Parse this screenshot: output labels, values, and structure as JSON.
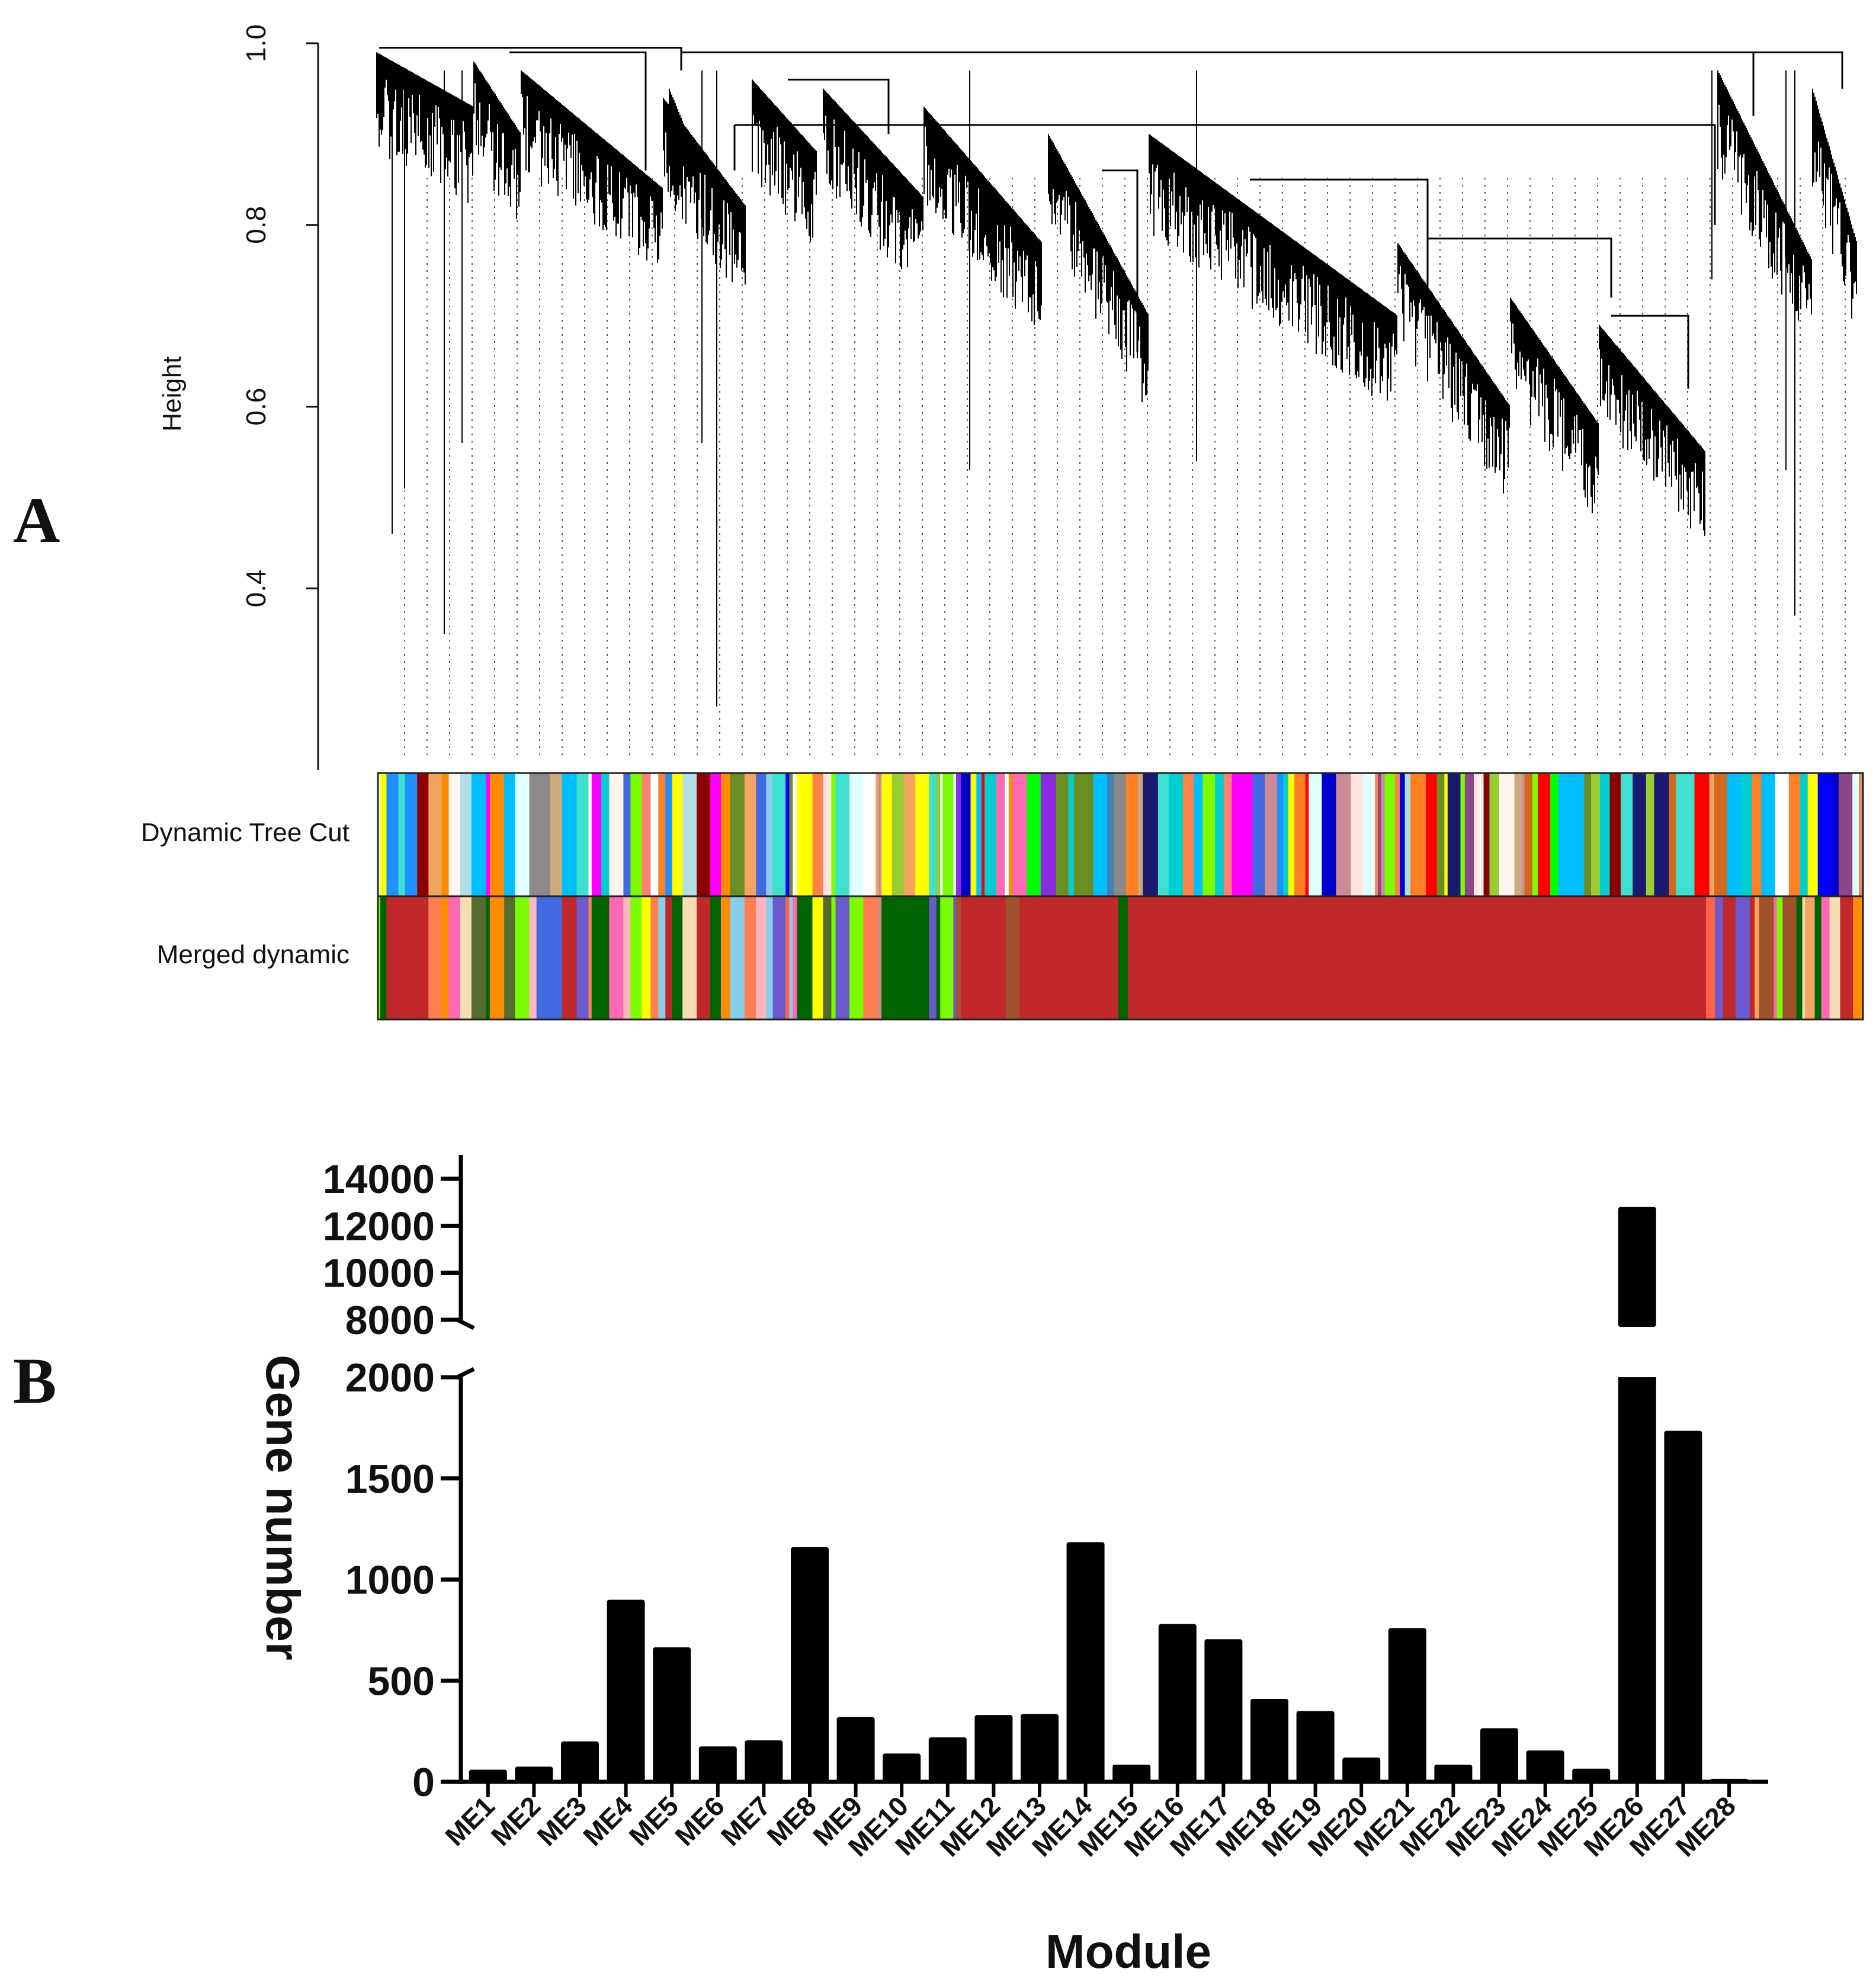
{
  "chart_data": [
    {
      "type": "dendrogram",
      "panel": "A",
      "ylabel": "Height",
      "ylim": [
        0.2,
        1.0
      ],
      "yticks": [
        "0.4",
        "0.6",
        "0.8",
        "1.0"
      ],
      "ytick_values": [
        0.4,
        0.6,
        0.8,
        1.0
      ],
      "color_rows": [
        {
          "label": "Dynamic Tree Cut"
        },
        {
          "label": "Merged dynamic"
        }
      ],
      "dynamic_colors": [
        "#cd8c95",
        "#ff69b4",
        "#fff5ee",
        "#d2691e",
        "#8b4789",
        "#ff8247",
        "#fa8072",
        "#00ced1",
        "#ffff00",
        "#f4a460",
        "#ffffff",
        "#cdaa7d",
        "#8b8989",
        "#4169e1",
        "#87ceeb",
        "#6b8e23",
        "#ff7f24",
        "#b0e0e6",
        "#9acd32",
        "#ff00ff",
        "#1e90ff",
        "#00bfff",
        "#ffe4e1",
        "#4682b4",
        "#8b0000",
        "#0000cd",
        "#ff8c00",
        "#00ced1",
        "#40e0d0",
        "#ff0000",
        "#00bfff",
        "#0000ff",
        "#00ff00",
        "#40e0d0",
        "#e0ffff",
        "#7cfc00",
        "#8a2be2",
        "#191970"
      ],
      "merged_colors": [
        "#cd8c95",
        "#ff69b4",
        "#f4a460",
        "#ffff00",
        "#006400",
        "#ff7f50",
        "#4169e1",
        "#ffb6c1",
        "#87ceeb",
        "#f5deb3",
        "#006400",
        "#c0282c",
        "#556b2f",
        "#c0282c",
        "#ff8c00",
        "#c0282c",
        "#556b2f",
        "#ff6347",
        "#6a5acd",
        "#7cfc00",
        "#a0522d"
      ],
      "merged_main_color": "#c0282c"
    },
    {
      "type": "bar",
      "panel": "B",
      "title": "",
      "xlabel": "Module",
      "ylabel": "Gene number",
      "categories": [
        "ME1",
        "ME2",
        "ME3",
        "ME4",
        "ME5",
        "ME6",
        "ME7",
        "ME8",
        "ME9",
        "ME10",
        "ME11",
        "ME12",
        "ME13",
        "ME14",
        "ME15",
        "ME16",
        "ME17",
        "ME18",
        "ME19",
        "ME20",
        "ME21",
        "ME22",
        "ME23",
        "ME24",
        "ME25",
        "ME26",
        "ME27",
        "ME28"
      ],
      "values": [
        60,
        75,
        200,
        900,
        665,
        175,
        205,
        1160,
        320,
        140,
        220,
        330,
        335,
        1185,
        85,
        780,
        705,
        410,
        350,
        120,
        760,
        85,
        265,
        155,
        65,
        12800,
        1735,
        15
      ],
      "color": "#000000",
      "y_axis_broken": true,
      "lower_ylim": [
        0,
        2000
      ],
      "lower_yticks": [
        "0",
        "500",
        "1000",
        "1500",
        "2000"
      ],
      "lower_ytick_values": [
        0,
        500,
        1000,
        1500,
        2000
      ],
      "upper_ylim": [
        8000,
        14000
      ],
      "upper_yticks": [
        "8000",
        "10000",
        "12000",
        "14000"
      ],
      "upper_ytick_values": [
        8000,
        10000,
        12000,
        14000
      ]
    }
  ]
}
